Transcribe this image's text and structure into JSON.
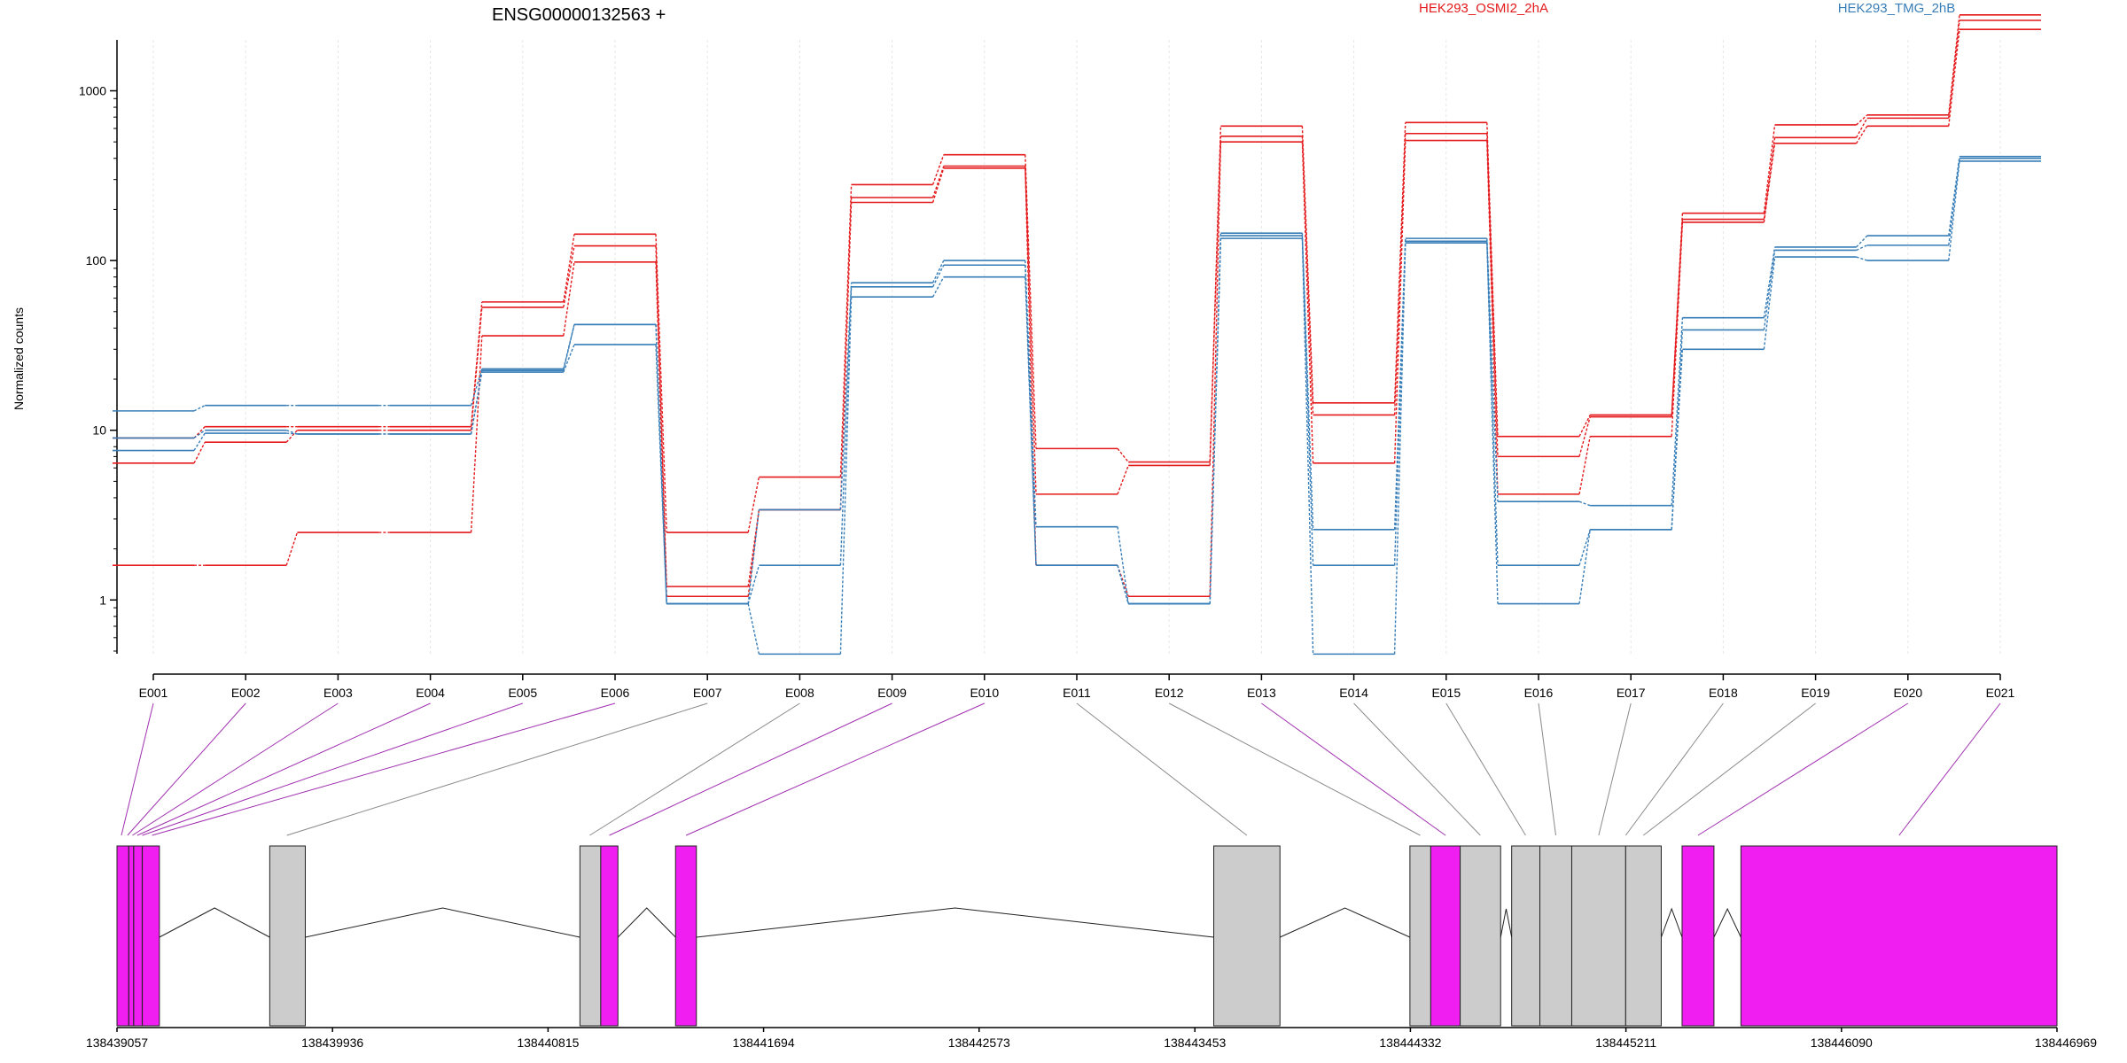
{
  "chart_data": {
    "type": "line",
    "title": "ENSG00000132563 +",
    "ylabel": "Normalized counts",
    "xlabel": "",
    "yscale": "log",
    "ylim": [
      0.5,
      4000
    ],
    "yticks": [
      1,
      10,
      100,
      1000
    ],
    "ytick_labels": [
      "1",
      "10",
      "100",
      "1000"
    ],
    "grid": "vertical",
    "legend_position": "top",
    "colors": {
      "red": "#e41a1c",
      "blue": "#377eb8",
      "exon_highlight": "#f11ef1",
      "exon_grey": "#cccccc"
    },
    "categories": [
      "E001",
      "E002",
      "E003",
      "E004",
      "E005",
      "E006",
      "E007",
      "E008",
      "E009",
      "E010",
      "E011",
      "E012",
      "E013",
      "E014",
      "E015",
      "E016",
      "E017",
      "E018",
      "E019",
      "E020",
      "E021"
    ],
    "legend": [
      {
        "name": "HEK293_OSMI2_2hA",
        "color": "#e41a1c"
      },
      {
        "name": "HEK293_TMG_2hB",
        "color": "#377eb8"
      }
    ],
    "series": [
      {
        "group": "HEK293_OSMI2_2hA",
        "color": "#e41a1c",
        "values": [
          9,
          10.5,
          10.5,
          10.5,
          57,
          143,
          2.5,
          5.3,
          280,
          420,
          7.8,
          6.5,
          620,
          14.5,
          650,
          9.2,
          12.3,
          190,
          630,
          720,
          2800
        ]
      },
      {
        "group": "HEK293_OSMI2_2hA",
        "color": "#e41a1c",
        "values": [
          6.4,
          8.5,
          10,
          10,
          53,
          122,
          1.2,
          3.4,
          235,
          360,
          4.2,
          6.2,
          540,
          12.3,
          560,
          7,
          12,
          175,
          530,
          690,
          2600
        ]
      },
      {
        "group": "HEK293_OSMI2_2hA",
        "color": "#e41a1c",
        "values": [
          1.6,
          1.6,
          2.5,
          2.5,
          36,
          98,
          1.05,
          3.4,
          220,
          350,
          1.6,
          1.05,
          500,
          6.4,
          510,
          4.2,
          9.2,
          168,
          490,
          620,
          2300
        ]
      },
      {
        "group": "HEK293_TMG_2hB",
        "color": "#377eb8",
        "values": [
          13,
          14,
          14,
          14,
          23,
          42,
          0.95,
          3.4,
          74,
          100,
          2.7,
          0.95,
          145,
          2.6,
          135,
          3.8,
          3.6,
          46,
          120,
          140,
          410
        ]
      },
      {
        "group": "HEK293_TMG_2hB",
        "color": "#377eb8",
        "values": [
          9,
          10,
          9.5,
          9.5,
          22.5,
          42,
          0.95,
          1.6,
          70,
          94,
          1.6,
          0.95,
          140,
          1.6,
          130,
          1.6,
          2.6,
          39,
          115,
          123,
          400
        ]
      },
      {
        "group": "HEK293_TMG_2hB",
        "color": "#377eb8",
        "values": [
          7.6,
          9.6,
          9.5,
          9.5,
          22,
          32,
          0.95,
          0.48,
          61,
          80,
          1.6,
          0.95,
          135,
          0.48,
          127,
          0.95,
          2.6,
          30,
          105,
          100,
          385
        ]
      }
    ],
    "gene_model": {
      "axis_start": 138439057,
      "axis_end": 138446969,
      "axis_tick_labels": [
        "138439057",
        "138439936",
        "138440815",
        "138441694",
        "138442573",
        "138443453",
        "138444332",
        "138445211",
        "138446090",
        "138446969"
      ],
      "axis_ticks": [
        138439057,
        138439936,
        138440815,
        138441694,
        138442573,
        138443453,
        138444332,
        138445211,
        138446090,
        138446969
      ],
      "exons": [
        {
          "start": 138439057,
          "end": 138439230,
          "highlight": true
        },
        {
          "start": 138439680,
          "end": 138439825,
          "highlight": false
        },
        {
          "start": 138440945,
          "end": 138441030,
          "highlight": false
        },
        {
          "start": 138441030,
          "end": 138441100,
          "highlight": true
        },
        {
          "start": 138441335,
          "end": 138441420,
          "highlight": true
        },
        {
          "start": 138443530,
          "end": 138443800,
          "highlight": false
        },
        {
          "start": 138444330,
          "end": 138444415,
          "highlight": false
        },
        {
          "start": 138444415,
          "end": 138444535,
          "highlight": true
        },
        {
          "start": 138444535,
          "end": 138444700,
          "highlight": false
        },
        {
          "start": 138444745,
          "end": 138444860,
          "highlight": false
        },
        {
          "start": 138444860,
          "end": 138444990,
          "highlight": false
        },
        {
          "start": 138444990,
          "end": 138445210,
          "highlight": false
        },
        {
          "start": 138445210,
          "end": 138445355,
          "highlight": false
        },
        {
          "start": 138445440,
          "end": 138445570,
          "highlight": true
        },
        {
          "start": 138445680,
          "end": 138446969,
          "highlight": true
        }
      ],
      "exon_separators": [
        138439105,
        138439125,
        138439160
      ],
      "exon_links": [
        {
          "exon": "E001",
          "pos": 138439075,
          "highlight": true
        },
        {
          "exon": "E002",
          "pos": 138439100,
          "highlight": true
        },
        {
          "exon": "E003",
          "pos": 138439120,
          "highlight": true
        },
        {
          "exon": "E004",
          "pos": 138439140,
          "highlight": true
        },
        {
          "exon": "E005",
          "pos": 138439160,
          "highlight": true
        },
        {
          "exon": "E006",
          "pos": 138439200,
          "highlight": true
        },
        {
          "exon": "E007",
          "pos": 138439750,
          "highlight": false
        },
        {
          "exon": "E008",
          "pos": 138440985,
          "highlight": false
        },
        {
          "exon": "E009",
          "pos": 138441065,
          "highlight": true
        },
        {
          "exon": "E010",
          "pos": 138441378,
          "highlight": true
        },
        {
          "exon": "E011",
          "pos": 138443665,
          "highlight": false
        },
        {
          "exon": "E012",
          "pos": 138444372,
          "highlight": false
        },
        {
          "exon": "E013",
          "pos": 138444475,
          "highlight": true
        },
        {
          "exon": "E014",
          "pos": 138444617,
          "highlight": false
        },
        {
          "exon": "E015",
          "pos": 138444802,
          "highlight": false
        },
        {
          "exon": "E016",
          "pos": 138444925,
          "highlight": false
        },
        {
          "exon": "E017",
          "pos": 138445100,
          "highlight": false
        },
        {
          "exon": "E018",
          "pos": 138445210,
          "highlight": false
        },
        {
          "exon": "E019",
          "pos": 138445282,
          "highlight": false
        },
        {
          "exon": "E020",
          "pos": 138445505,
          "highlight": true
        },
        {
          "exon": "E021",
          "pos": 138446325,
          "highlight": true
        }
      ]
    }
  }
}
